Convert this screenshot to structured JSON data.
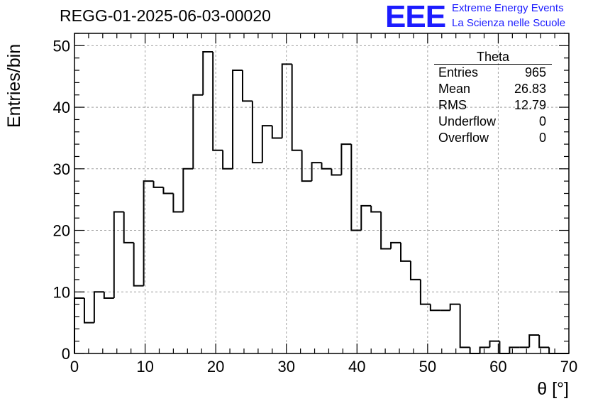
{
  "header": {
    "run_title": "REGG-01-2025-06-03-00020",
    "logo_text": "EEE",
    "logo_line1": "Extreme Energy Events",
    "logo_line2": "La Scienza nelle Scuole"
  },
  "stats_box": {
    "name": "Theta",
    "rows": [
      {
        "label": "Entries",
        "value": "965"
      },
      {
        "label": "Mean",
        "value": "26.83"
      },
      {
        "label": "RMS",
        "value": "12.79"
      },
      {
        "label": "Underflow",
        "value": "0"
      },
      {
        "label": "Overflow",
        "value": "0"
      }
    ]
  },
  "chart_data": {
    "type": "bar",
    "style": "step-histogram",
    "title": "REGG-01-2025-06-03-00020",
    "xlabel": "θ [°]",
    "ylabel": "Entries/bin",
    "xlim": [
      0,
      70
    ],
    "ylim": [
      0,
      52
    ],
    "grid": true,
    "bin_width": 1.4,
    "bin_edges_start": 0,
    "values": [
      9,
      5,
      10,
      9,
      23,
      18,
      11,
      28,
      27,
      26,
      23,
      30,
      42,
      49,
      33,
      30,
      46,
      41,
      31,
      37,
      35,
      47,
      33,
      28,
      31,
      30,
      29,
      34,
      20,
      24,
      23,
      17,
      18,
      15,
      12,
      8,
      7,
      7,
      8,
      1,
      0,
      1,
      2,
      0,
      1,
      1,
      3,
      1,
      0,
      0
    ],
    "x_ticks": [
      0,
      10,
      20,
      30,
      40,
      50,
      60,
      70
    ],
    "y_ticks": [
      0,
      10,
      20,
      30,
      40,
      50
    ],
    "line_color": "#000000",
    "grid_color": "#a0a0a0"
  }
}
